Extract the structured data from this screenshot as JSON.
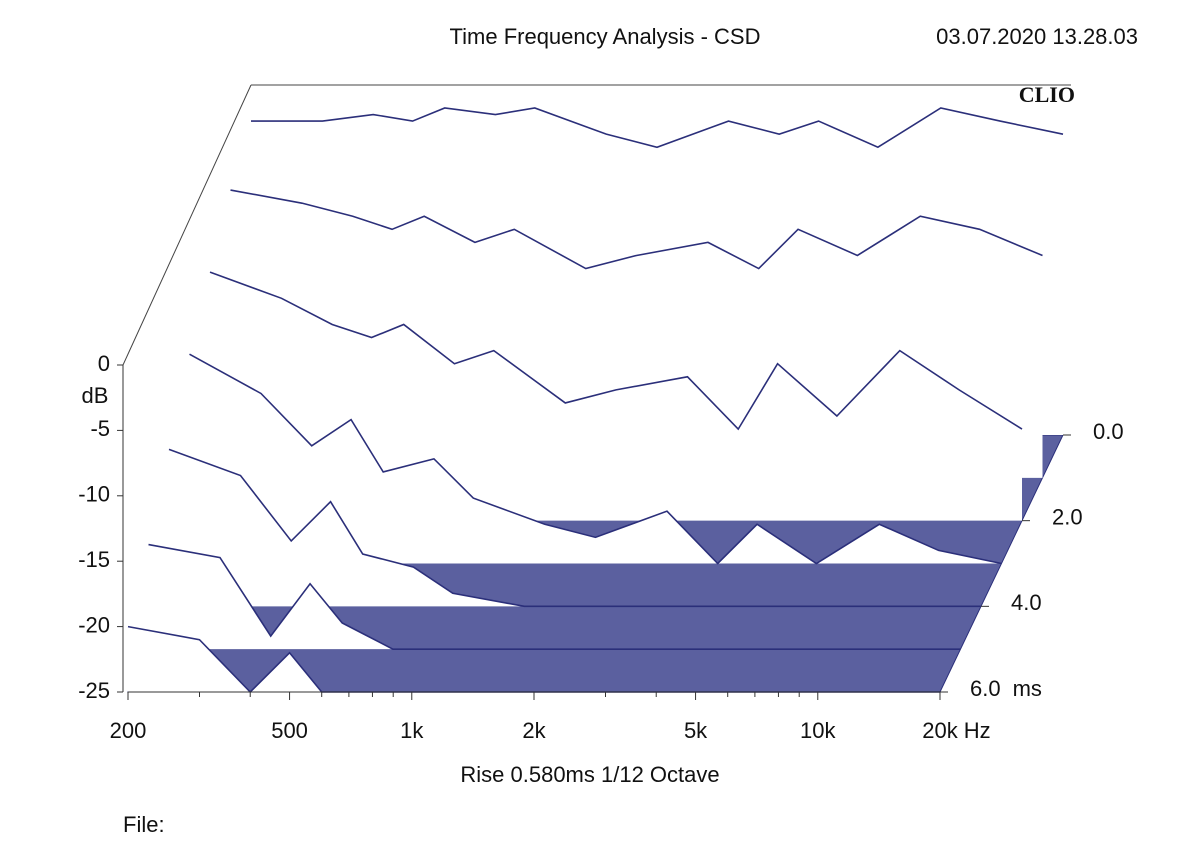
{
  "chart_data": {
    "type": "waterfall",
    "title": "Time Frequency Analysis - CSD",
    "timestamp": "03.07.2020 13.28.03",
    "brand": "CLIO",
    "ylabel": "dB",
    "x_unit": "Hz",
    "z_unit": "ms",
    "footer": "Rise 0.580ms   1/12 Octave",
    "file_label": "File:",
    "log_x": true,
    "color": "#2b2f7a",
    "floor_color": "#5b609f",
    "xlim": [
      200,
      20000
    ],
    "xticks": [
      200,
      500,
      {
        "value": 1000,
        "label": "1k"
      },
      {
        "value": 2000,
        "label": "2k"
      },
      {
        "value": 5000,
        "label": "5k"
      },
      {
        "value": 10000,
        "label": "10k"
      },
      {
        "value": 20000,
        "label": "20k"
      }
    ],
    "xminorticks": [
      300,
      400,
      600,
      700,
      800,
      900,
      3000,
      4000,
      6000,
      7000,
      8000,
      9000
    ],
    "ylim": [
      -25,
      0
    ],
    "yticks": [
      0,
      -5,
      -10,
      -15,
      -20,
      -25
    ],
    "zlim": [
      0,
      6
    ],
    "zticks": [
      {
        "value": 0,
        "label": "0.0"
      },
      {
        "value": 2,
        "label": "2.0"
      },
      {
        "value": 4,
        "label": "4.0"
      },
      {
        "value": 6,
        "label": "6.0"
      }
    ],
    "x": [
      200,
      300,
      400,
      500,
      600,
      800,
      1000,
      1500,
      2000,
      3000,
      4000,
      5000,
      7000,
      10000,
      14000,
      20000
    ],
    "slices": [
      {
        "time": 0,
        "values": [
          -1,
          -1,
          -0.5,
          -1,
          0,
          -0.5,
          0,
          -2,
          -3,
          -1,
          -2,
          -1,
          -3,
          0,
          -1,
          -2
        ]
      },
      {
        "time": 1,
        "values": [
          -3,
          -4,
          -5,
          -6,
          -5,
          -7,
          -6,
          -9,
          -8,
          -7,
          -9,
          -6,
          -8,
          -5,
          -6,
          -8
        ]
      },
      {
        "time": 2,
        "values": [
          -6,
          -8,
          -10,
          -11,
          -10,
          -13,
          -12,
          -16,
          -15,
          -14,
          -18,
          -13,
          -17,
          -12,
          -15,
          -18
        ]
      },
      {
        "time": 3,
        "values": [
          -9,
          -12,
          -16,
          -14,
          -18,
          -17,
          -20,
          -22,
          -23,
          -21,
          -25,
          -22,
          -25,
          -22,
          -24,
          -25
        ]
      },
      {
        "time": 4,
        "values": [
          -13,
          -15,
          -20,
          -17,
          -21,
          -22,
          -24,
          -25,
          -25,
          -25,
          -25,
          -25,
          -25,
          -25,
          -25,
          -25
        ]
      },
      {
        "time": 5,
        "values": [
          -17,
          -18,
          -24,
          -20,
          -23,
          -25,
          -25,
          -25,
          -25,
          -25,
          -25,
          -25,
          -25,
          -25,
          -25,
          -25
        ]
      },
      {
        "time": 6,
        "values": [
          -20,
          -21,
          -25,
          -22,
          -25,
          -25,
          -25,
          -25,
          -25,
          -25,
          -25,
          -25,
          -25,
          -25,
          -25,
          -25
        ]
      }
    ]
  }
}
